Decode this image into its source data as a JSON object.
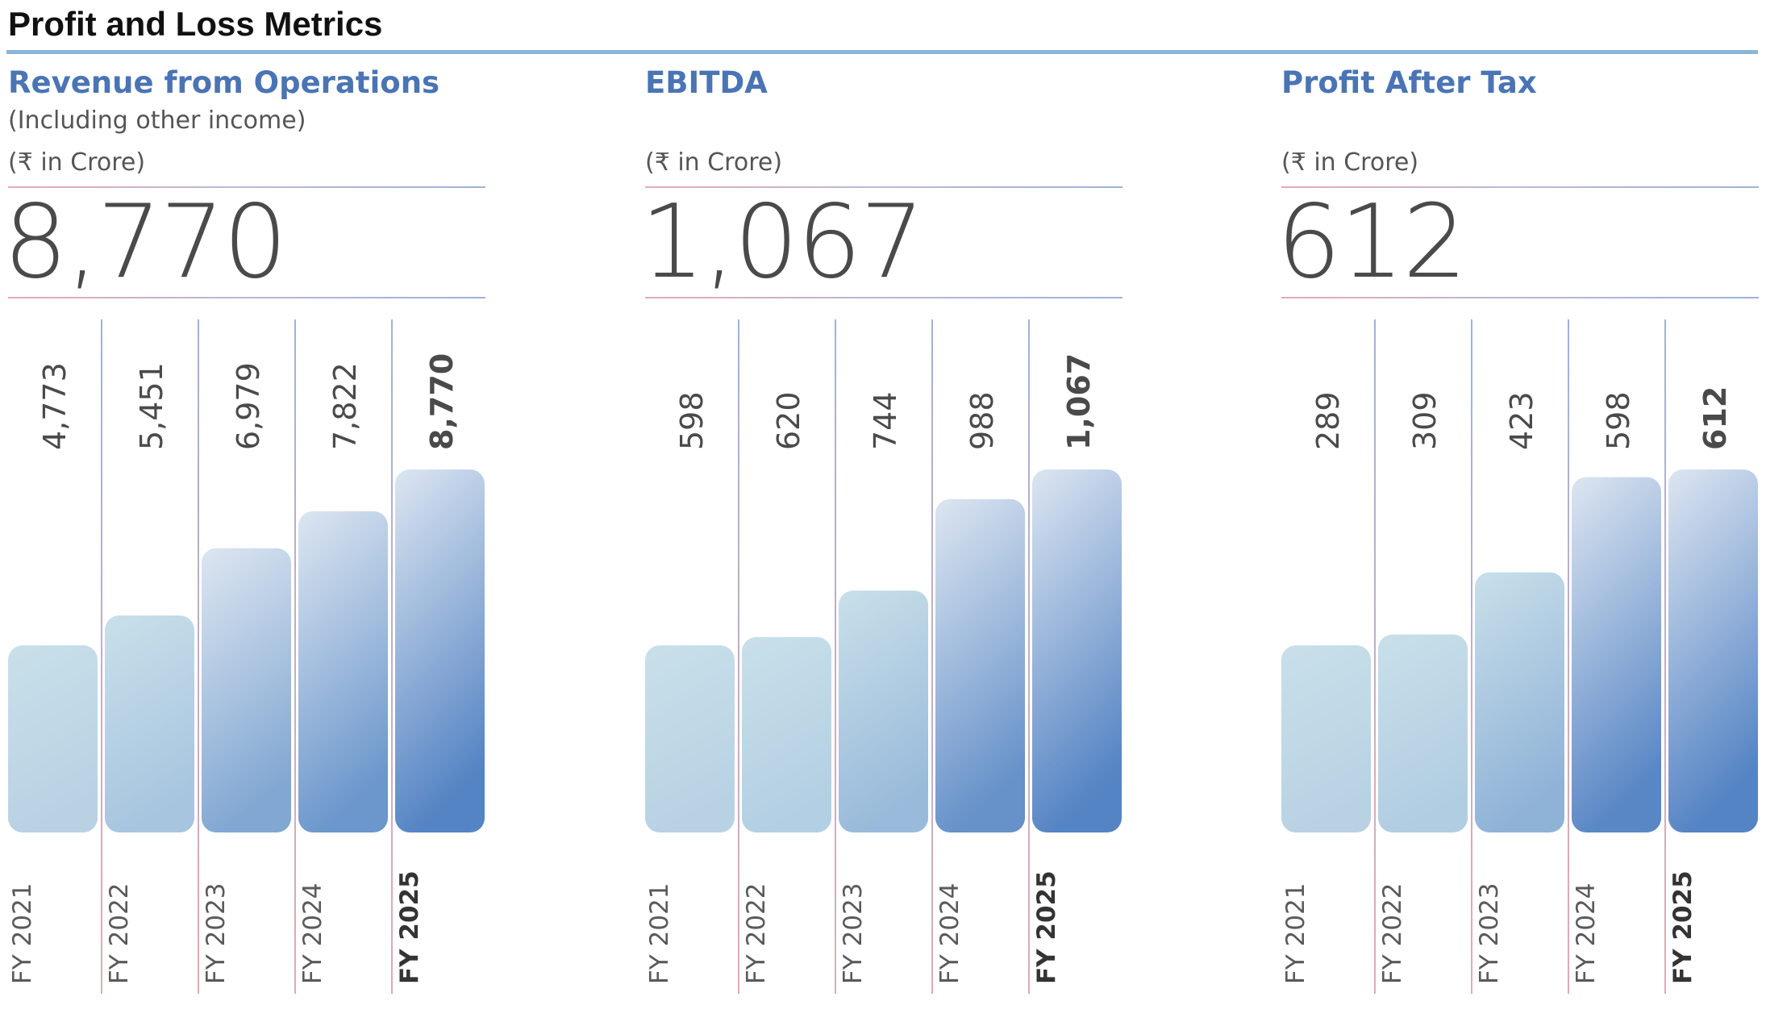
{
  "page_title": "Profit and Loss Metrics",
  "colors": {
    "title_accent": "#4a74b4",
    "title_rule": "#8ab6d8",
    "bar_light": "#c9e0ea",
    "bar_dark": "#5584c4",
    "text_dark": "#4a4a4a"
  },
  "chart_data": [
    {
      "type": "bar",
      "title": "Revenue from Operations",
      "subtitle": "(Including other income)",
      "unit": "(₹ in Crore)",
      "headline_value": "8,770",
      "categories": [
        "FY 2021",
        "FY 2022",
        "FY 2023",
        "FY 2024",
        "FY 2025"
      ],
      "values": [
        4773,
        5451,
        6979,
        7822,
        8770
      ],
      "value_labels": [
        "4,773",
        "5,451",
        "6,979",
        "7,822",
        "8,770"
      ],
      "highlight_index": 4
    },
    {
      "type": "bar",
      "title": "EBITDA",
      "subtitle": "",
      "unit": "(₹ in Crore)",
      "headline_value": "1,067",
      "categories": [
        "FY 2021",
        "FY 2022",
        "FY 2023",
        "FY 2024",
        "FY 2025"
      ],
      "values": [
        598,
        620,
        744,
        988,
        1067
      ],
      "value_labels": [
        "598",
        "620",
        "744",
        "988",
        "1,067"
      ],
      "highlight_index": 4
    },
    {
      "type": "bar",
      "title": "Profit After Tax",
      "subtitle": "",
      "unit": "(₹ in Crore)",
      "headline_value": "612",
      "categories": [
        "FY 2021",
        "FY 2022",
        "FY 2023",
        "FY 2024",
        "FY 2025"
      ],
      "values": [
        289,
        309,
        423,
        598,
        612
      ],
      "value_labels": [
        "289",
        "309",
        "423",
        "598",
        "612"
      ],
      "highlight_index": 4
    }
  ]
}
